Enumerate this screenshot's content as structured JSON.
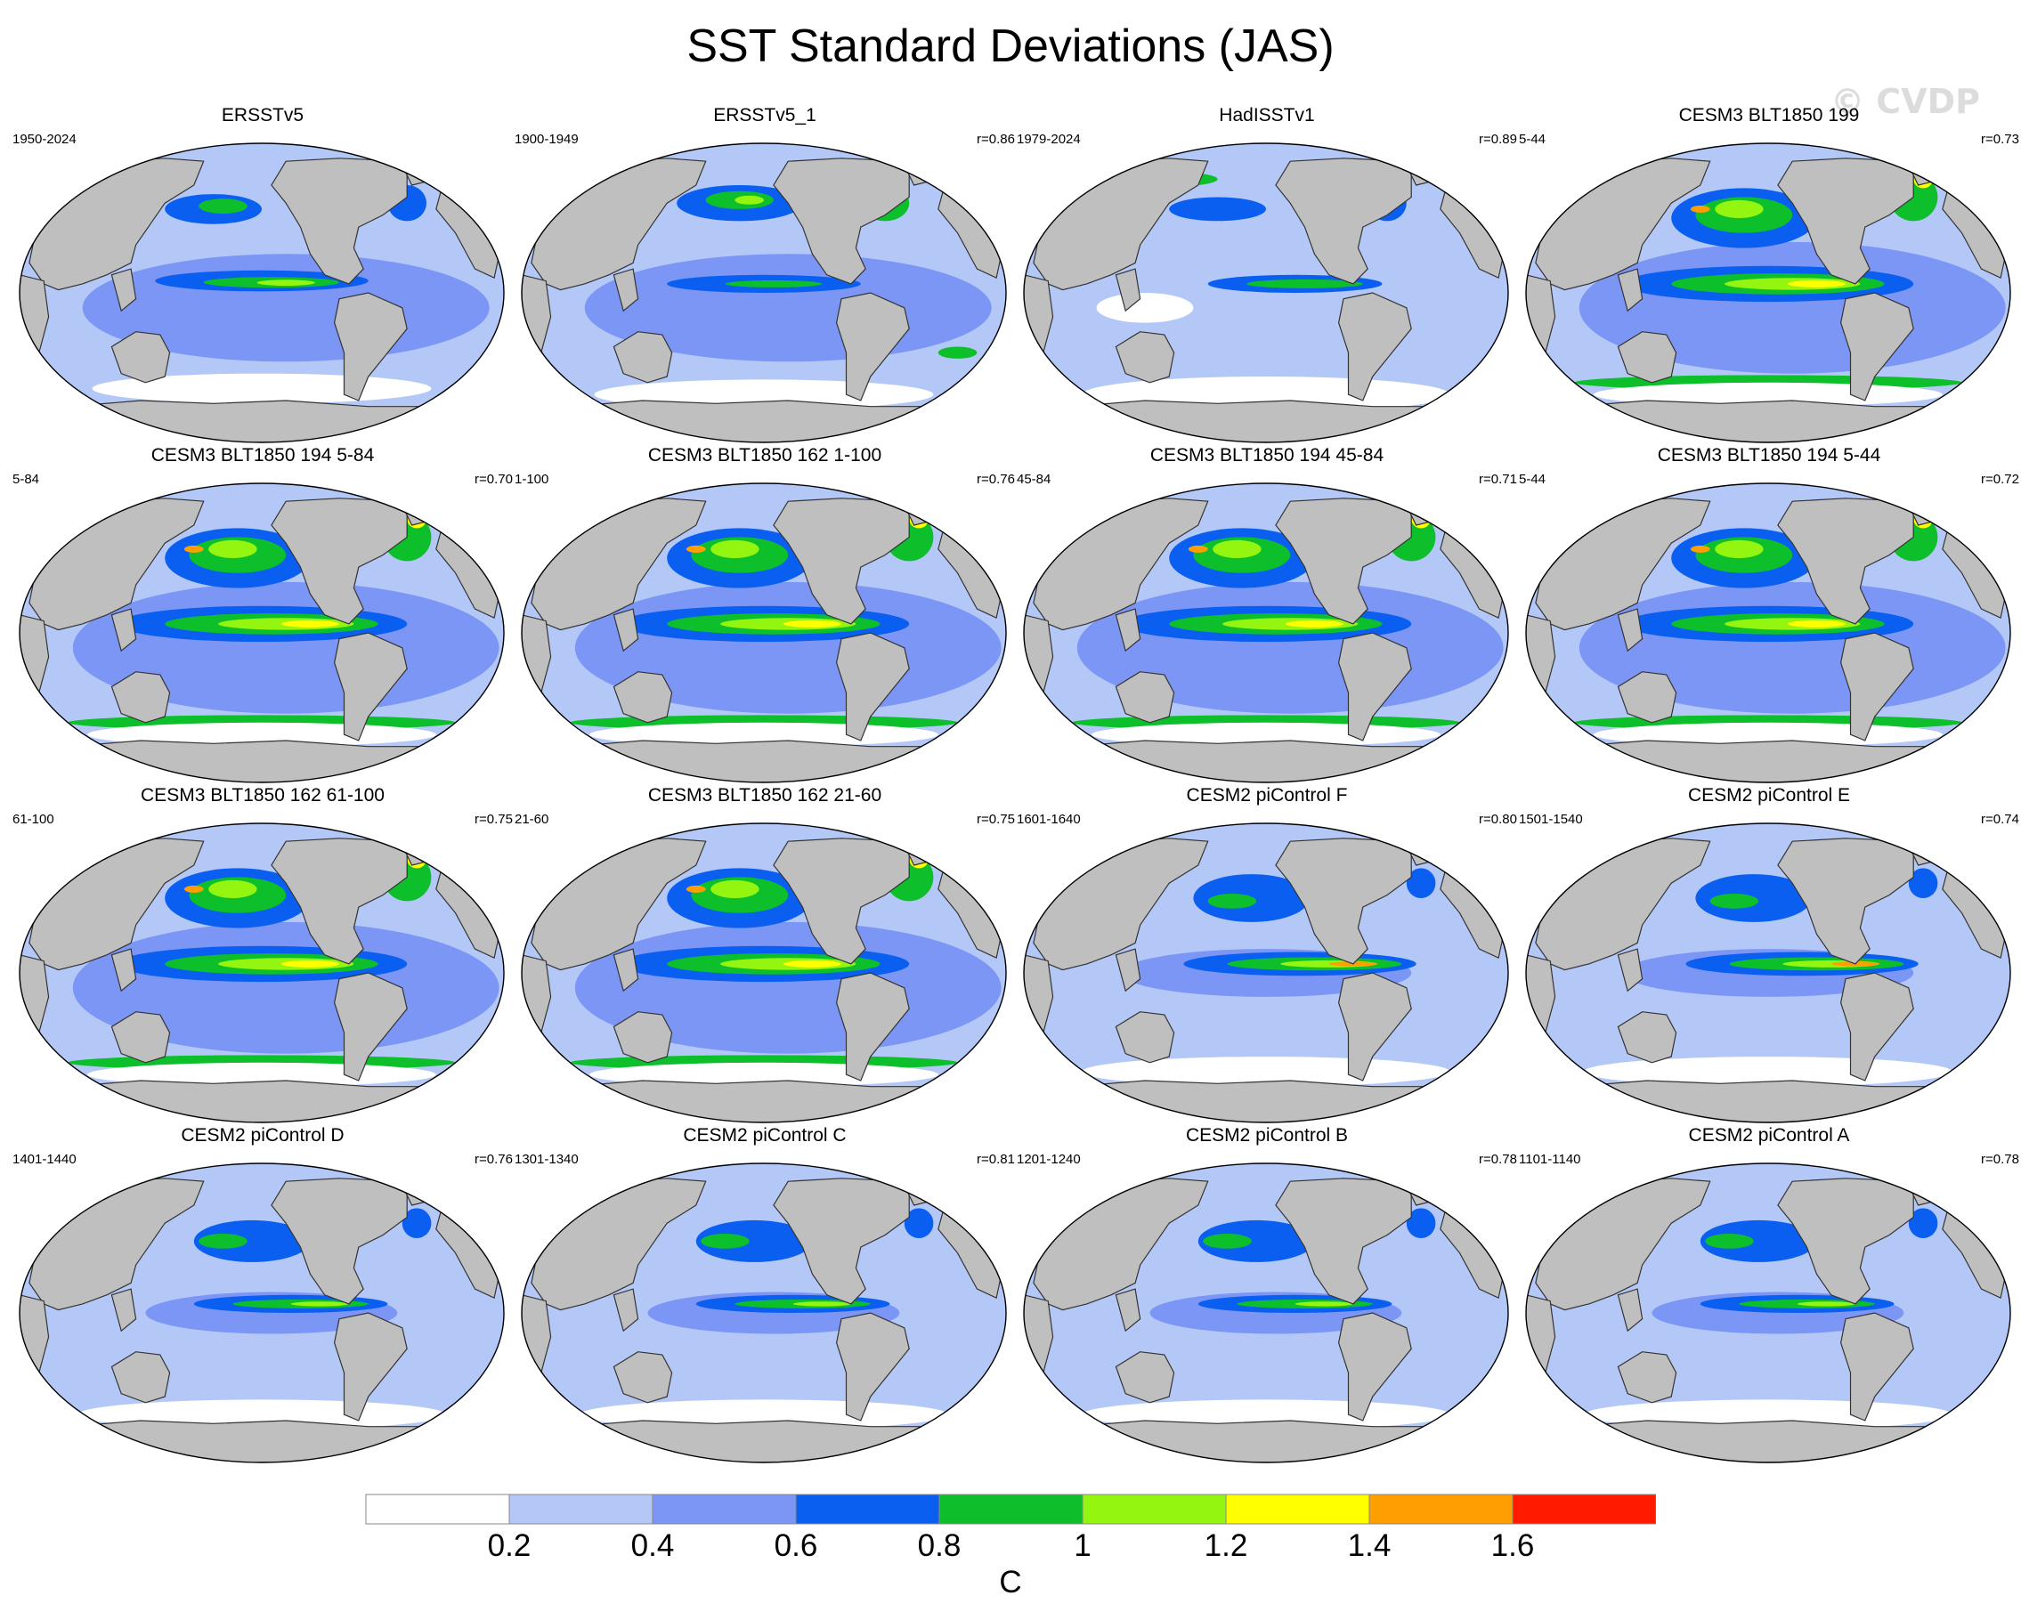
{
  "title": "SST Standard Deviations (JAS)",
  "watermark": "© CVDP",
  "legend": {
    "colors": [
      "#ffffff",
      "#b4c8f8",
      "#7c96f5",
      "#0a5ff0",
      "#0dbf2a",
      "#93f510",
      "#ffff00",
      "#ff9e00",
      "#ff1a00"
    ],
    "tick_labels": [
      "0.2",
      "0.4",
      "0.6",
      "0.8",
      "1",
      "1.2",
      "1.4",
      "1.6"
    ],
    "unit": "C"
  },
  "colors": {
    "land": "#bfbfbf",
    "coast": "#333333",
    "ocean_base": "#b4c8f8"
  },
  "panels": [
    {
      "title": "ERSSTv5",
      "period": "1950-2024",
      "r": "",
      "variability": "obs1"
    },
    {
      "title": "ERSSTv5_1",
      "period": "1900-1949",
      "r": "r=0.86",
      "variability": "obs2"
    },
    {
      "title": "HadISSTv1",
      "period": "1979-2024",
      "r": "r=0.89",
      "variability": "obs3"
    },
    {
      "title": "CESM3 BLT1850 199",
      "period": "5-44",
      "r": "r=0.73",
      "variability": "high"
    },
    {
      "title": "CESM3 BLT1850 194 5-84",
      "period": "5-84",
      "r": "r=0.70",
      "variability": "high"
    },
    {
      "title": "CESM3 BLT1850 162 1-100",
      "period": "1-100",
      "r": "r=0.76",
      "variability": "high"
    },
    {
      "title": "CESM3 BLT1850 194 45-84",
      "period": "45-84",
      "r": "r=0.71",
      "variability": "high"
    },
    {
      "title": "CESM3 BLT1850 194 5-44",
      "period": "5-44",
      "r": "r=0.72",
      "variability": "high"
    },
    {
      "title": "CESM3 BLT1850 162 61-100",
      "period": "61-100",
      "r": "r=0.75",
      "variability": "high"
    },
    {
      "title": "CESM3 BLT1850 162 21-60",
      "period": "21-60",
      "r": "r=0.75",
      "variability": "high"
    },
    {
      "title": "CESM2 piControl F",
      "period": "1601-1640",
      "r": "r=0.80",
      "variability": "mid"
    },
    {
      "title": "CESM2 piControl E",
      "period": "1501-1540",
      "r": "r=0.74",
      "variability": "mid"
    },
    {
      "title": "CESM2 piControl D",
      "period": "1401-1440",
      "r": "r=0.76",
      "variability": "low"
    },
    {
      "title": "CESM2 piControl C",
      "period": "1301-1340",
      "r": "r=0.81",
      "variability": "low"
    },
    {
      "title": "CESM2 piControl B",
      "period": "1201-1240",
      "r": "r=0.78",
      "variability": "low"
    },
    {
      "title": "CESM2 piControl A",
      "period": "1101-1140",
      "r": "r=0.78",
      "variability": "low"
    }
  ]
}
